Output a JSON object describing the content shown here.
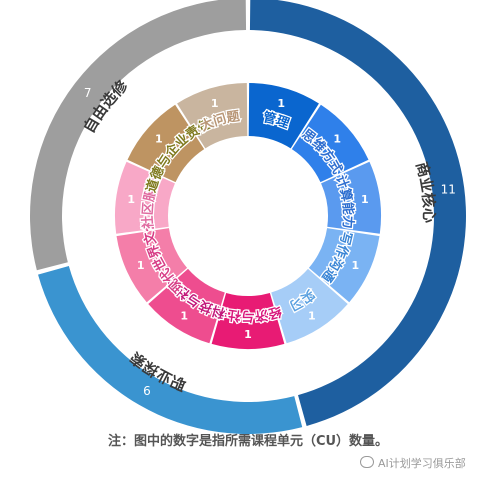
{
  "chart_data": {
    "type": "pie",
    "style": "multi-level donut (sunburst)",
    "outer_ring": [
      {
        "name": "商业核心",
        "value": 11,
        "color": "#1e5fa0"
      },
      {
        "name": "职业探索",
        "value": 6,
        "color": "#3a94d0"
      },
      {
        "name": "自由选修",
        "value": 7,
        "color": "#9e9e9e"
      }
    ],
    "inner_ring": [
      {
        "name": "管理",
        "value": 1,
        "color": "#0a66cf",
        "label_color": "#0a66cf",
        "parent": "商业核心"
      },
      {
        "name": "思维方式",
        "value": 1,
        "color": "#2f80ea",
        "label_color": "#2f6fd0",
        "parent": "商业核心"
      },
      {
        "name": "计算能力",
        "value": 1,
        "color": "#5a9aef",
        "label_color": "#2f6fd0",
        "parent": "商业核心"
      },
      {
        "name": "写作沟通",
        "value": 1,
        "color": "#7ab3f3",
        "label_color": "#3b86d6",
        "parent": "商业核心"
      },
      {
        "name": "实习",
        "value": 1,
        "color": "#a6cdf7",
        "label_color": "#5aa0e0",
        "parent": "商业核心"
      },
      {
        "name": "经济与社会",
        "value": 1,
        "color": "#e81b74",
        "label_color": "#d8177c",
        "parent": "职业探索"
      },
      {
        "name": "科技与社会",
        "value": 1,
        "color": "#ee4d8f",
        "label_color": "#c2187a",
        "parent": "职业探索"
      },
      {
        "name": "现代世界文化",
        "value": 1,
        "color": "#f47ea9",
        "label_color": "#d73d86",
        "parent": "职业探索"
      },
      {
        "name": "社区服务",
        "value": 1,
        "color": "#f8a8c7",
        "label_color": "#e06aa0",
        "parent": "职业探索"
      },
      {
        "name": "道德与企业责任",
        "value": 1,
        "color": "#be9462",
        "label_color": "#7f7a1e",
        "parent": "自由选修"
      },
      {
        "name": "大问题",
        "value": 1,
        "color": "#c9b59f",
        "label_color": "#b89676",
        "parent": "自由选修"
      }
    ],
    "outer_label_color": "#3a3a3a",
    "legend": "none"
  },
  "footer": {
    "note": "注：图中的数字是指所需课程单元（CU）数量。",
    "watermark": "AI计划学习俱乐部"
  }
}
